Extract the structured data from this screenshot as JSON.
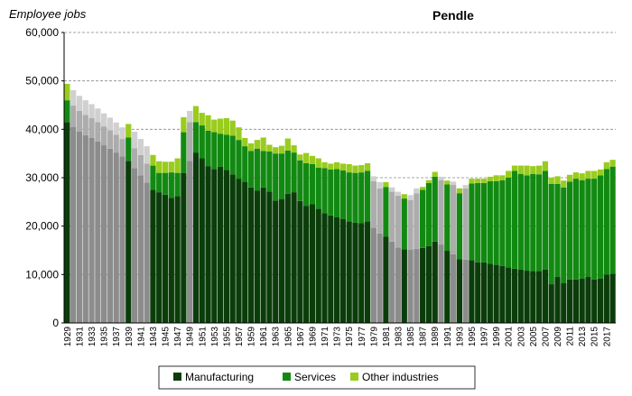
{
  "chart_data": {
    "type": "bar",
    "stacked": true,
    "title": "Pendle",
    "ylabel": "Employee jobs",
    "xlabel": "",
    "ylim": [
      0,
      60000
    ],
    "yticks": [
      "0",
      "10,000",
      "20,000",
      "30,000",
      "40,000",
      "50,000",
      "60,000"
    ],
    "ytick_values": [
      0,
      10000,
      20000,
      30000,
      40000,
      50000,
      60000
    ],
    "grid": "horizontal-dashed",
    "legend_position": "bottom",
    "x": [
      1929,
      1930,
      1931,
      1932,
      1933,
      1934,
      1935,
      1936,
      1937,
      1938,
      1939,
      1940,
      1941,
      1942,
      1943,
      1944,
      1945,
      1946,
      1947,
      1948,
      1949,
      1950,
      1951,
      1952,
      1953,
      1954,
      1955,
      1956,
      1957,
      1958,
      1959,
      1960,
      1961,
      1962,
      1963,
      1964,
      1965,
      1966,
      1967,
      1968,
      1969,
      1970,
      1971,
      1972,
      1973,
      1974,
      1975,
      1976,
      1977,
      1978,
      1979,
      1980,
      1981,
      1982,
      1983,
      1984,
      1985,
      1986,
      1987,
      1988,
      1989,
      1990,
      1991,
      1992,
      1993,
      1994,
      1995,
      1996,
      1997,
      1998,
      1999,
      2000,
      2001,
      2002,
      2003,
      2004,
      2005,
      2006,
      2007,
      2008,
      2009,
      2010,
      2011,
      2012,
      2013,
      2014,
      2015,
      2016,
      2017,
      2018
    ],
    "x_tick_labels": [
      "1929",
      "1931",
      "1933",
      "1935",
      "1937",
      "1939",
      "1941",
      "1943",
      "1945",
      "1947",
      "1949",
      "1951",
      "1953",
      "1955",
      "1957",
      "1959",
      "1961",
      "1963",
      "1965",
      "1967",
      "1969",
      "1971",
      "1973",
      "1975",
      "1977",
      "1979",
      "1981",
      "1983",
      "1985",
      "1987",
      "1989",
      "1991",
      "1993",
      "1995",
      "1997",
      "1999",
      "2001",
      "2003",
      "2005",
      "2007",
      "2009",
      "2011",
      "2013",
      "2015",
      "2017"
    ],
    "series": [
      {
        "name": "Manufacturing",
        "color": "#0b3d0b",
        "estimated_color": "#8c8c8c",
        "values": [
          41500,
          40500,
          39500,
          38800,
          38200,
          37500,
          36700,
          36000,
          35200,
          34400,
          33500,
          32000,
          30500,
          29000,
          27500,
          27000,
          26500,
          25800,
          26200,
          31000,
          33500,
          35200,
          34000,
          32400,
          31800,
          32300,
          31600,
          30700,
          29800,
          29200,
          28000,
          27300,
          28000,
          27100,
          25300,
          25600,
          26700,
          27000,
          25200,
          24200,
          24500,
          23600,
          22700,
          22200,
          21800,
          21500,
          21000,
          20700,
          20600,
          21000,
          19700,
          18500,
          17800,
          16800,
          15600,
          15200,
          15100,
          15300,
          15500,
          15900,
          16800,
          16200,
          14900,
          14200,
          13200,
          13100,
          13000,
          12500,
          12500,
          12200,
          12000,
          11800,
          11500,
          11200,
          11000,
          10800,
          10700,
          10700,
          11000,
          8000,
          9500,
          8200,
          9000,
          9000,
          9200,
          9500,
          9000,
          9200,
          10000,
          10200
        ]
      },
      {
        "name": "Services",
        "color": "#128a12",
        "estimated_color": "#acacac",
        "values": [
          4500,
          4400,
          4300,
          4200,
          4100,
          4000,
          3900,
          3800,
          3700,
          3600,
          4800,
          4100,
          4200,
          3900,
          5000,
          4000,
          4500,
          5300,
          4800,
          8400,
          8000,
          6300,
          6800,
          7300,
          7600,
          6800,
          7300,
          8000,
          8000,
          7300,
          7500,
          8700,
          7500,
          8300,
          9700,
          9400,
          8900,
          8200,
          8400,
          8800,
          8300,
          8500,
          9300,
          9500,
          10000,
          10000,
          10100,
          10300,
          10500,
          10400,
          9600,
          9300,
          10300,
          10300,
          10700,
          10500,
          10300,
          11500,
          12000,
          13000,
          13400,
          13300,
          13700,
          14300,
          13600,
          14700,
          15800,
          16400,
          16400,
          17100,
          17300,
          17700,
          18500,
          20200,
          19800,
          19700,
          20100,
          20000,
          20400,
          20700,
          19200,
          19800,
          20200,
          20800,
          20300,
          20300,
          20800,
          21300,
          21800,
          22100
        ]
      },
      {
        "name": "Other industries",
        "color": "#99cc1e",
        "estimated_color": "#d0d0d0",
        "values": [
          3400,
          3200,
          3100,
          3000,
          2900,
          2800,
          2700,
          2600,
          2500,
          2400,
          2800,
          3400,
          3300,
          3600,
          2200,
          2400,
          2300,
          2200,
          3000,
          3100,
          2300,
          3300,
          2600,
          3200,
          2600,
          3100,
          3400,
          3100,
          2600,
          1700,
          1600,
          1800,
          2800,
          1400,
          1300,
          1600,
          2500,
          1500,
          1200,
          2100,
          1700,
          1900,
          1200,
          1200,
          1400,
          1400,
          1700,
          1500,
          1500,
          1600,
          1000,
          1300,
          1000,
          900,
          800,
          900,
          1000,
          1000,
          600,
          600,
          1000,
          700,
          800,
          700,
          1000,
          700,
          1000,
          900,
          900,
          900,
          1200,
          1000,
          1400,
          1100,
          1700,
          2000,
          1600,
          1800,
          2000,
          1300,
          1600,
          1400,
          1400,
          1300,
          1400,
          1600,
          1600,
          1200,
          1400,
          1400
        ]
      }
    ],
    "estimated_years": [
      1930,
      1931,
      1932,
      1933,
      1934,
      1935,
      1936,
      1937,
      1938,
      1940,
      1941,
      1942,
      1949,
      1979,
      1980,
      1982,
      1983,
      1985,
      1986,
      1990,
      1992,
      1994
    ]
  }
}
